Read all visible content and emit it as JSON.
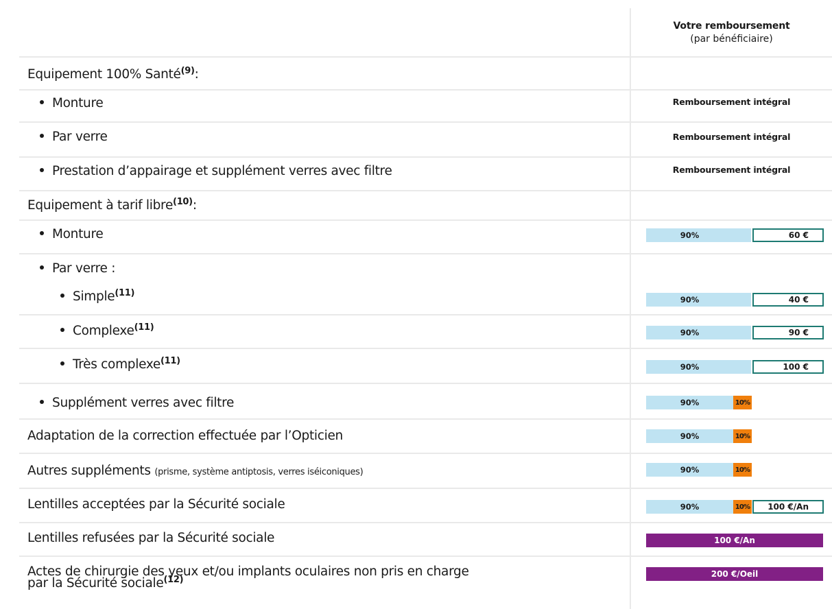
{
  "header": {
    "title": "Votre remboursement",
    "subtitle": "(par bénéficiaire)"
  },
  "rows": {
    "r1": {
      "label": "Equipement 100% Santé",
      "sup": "(9)",
      "suffix": ":"
    },
    "r2": {
      "label": "Monture",
      "value": "Remboursement intégral"
    },
    "r3": {
      "label": "Par verre",
      "value": "Remboursement intégral"
    },
    "r4": {
      "label": "Prestation d’appairage et supplément verres avec filtre",
      "value": "Remboursement intégral"
    },
    "r5": {
      "label": "Equipement à tarif libre",
      "sup": "(10)",
      "suffix": ":"
    },
    "r6": {
      "label": "Monture",
      "pct": "90%",
      "amount": "60 €"
    },
    "r7": {
      "label": "Par verre :"
    },
    "r8": {
      "label": "Simple",
      "sup": "(11)",
      "pct": "90%",
      "amount": "40 €"
    },
    "r9": {
      "label": "Complexe",
      "sup": "(11)",
      "pct": "90%",
      "amount": "90 €"
    },
    "r10": {
      "label": "Très complexe",
      "sup": "(11)",
      "pct": "90%",
      "amount": "100 €"
    },
    "r11": {
      "label": "Supplément verres avec filtre",
      "pct": "90%",
      "pct2": "10%"
    },
    "r12": {
      "label": "Adaptation de la correction effectuée par l’Opticien",
      "pct": "90%",
      "pct2": "10%"
    },
    "r13": {
      "label": "Autres suppléments",
      "small": "(prisme, système antiptosis, verres iséiconiques)",
      "pct": "90%",
      "pct2": "10%"
    },
    "r14": {
      "label": "Lentilles acceptées par la Sécurité sociale",
      "pct": "90%",
      "pct2": "10%",
      "amount": "100 €/An"
    },
    "r15": {
      "label": "Lentilles refusées par la Sécurité sociale",
      "amount": "100 €/An"
    },
    "r16": {
      "label1": "Actes de chirurgie des yeux et/ou implants oculaires non pris en charge",
      "label2": "par la Sécurité sociale",
      "sup": "(12)",
      "amount": "200 €/Oeil"
    }
  },
  "colors": {
    "bar90": "#bfe3f2",
    "bar10": "#f07f0c",
    "border": "#1d7a72",
    "purple": "#822085"
  }
}
